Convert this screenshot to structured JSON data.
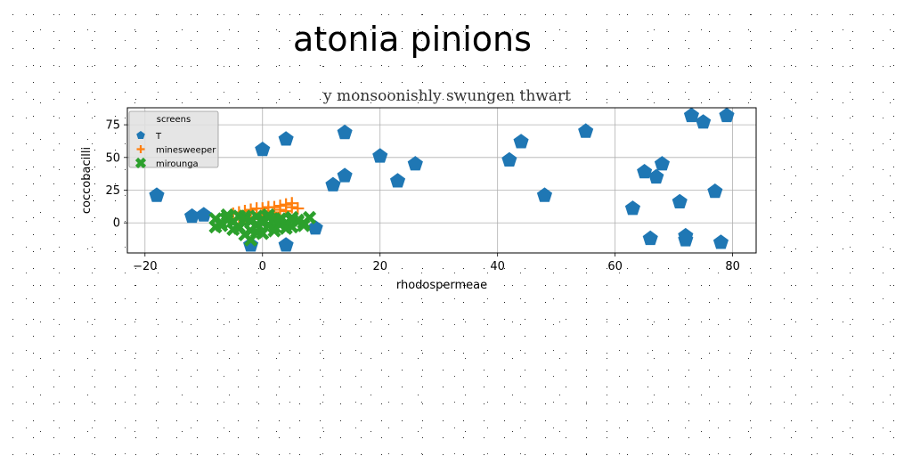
{
  "figure": {
    "suptitle": "atonia pinions"
  },
  "chart_data": {
    "type": "scatter",
    "title": "y monsoonishly swungen thwart",
    "xlabel": "rhodospermeae",
    "ylabel": "coccobacilli",
    "xlim": [
      -23,
      84
    ],
    "ylim": [
      -23,
      88
    ],
    "xticks": [
      -20,
      0,
      20,
      40,
      60,
      80
    ],
    "yticks": [
      0,
      25,
      50,
      75
    ],
    "grid": true,
    "legend": {
      "title": "screens",
      "position": "upper-left",
      "entries": [
        "T",
        "minesweeper",
        "mirounga"
      ]
    },
    "series": [
      {
        "name": "T",
        "marker": "pentagon",
        "color": "#1f77b4",
        "x": [
          -18,
          -12,
          -10,
          -2,
          0,
          4,
          4,
          9,
          12,
          14,
          14,
          20,
          23,
          26,
          42,
          44,
          48,
          55,
          63,
          65,
          66,
          67,
          68,
          71,
          72,
          72,
          73,
          75,
          77,
          78,
          79
        ],
        "y": [
          21,
          5,
          6,
          -17,
          56,
          64,
          -17,
          -4,
          29,
          36,
          69,
          51,
          32,
          45,
          48,
          62,
          21,
          70,
          11,
          39,
          -12,
          35,
          45,
          16,
          -10,
          -13,
          82,
          77,
          24,
          -15,
          82
        ]
      },
      {
        "name": "minesweeper",
        "marker": "plus",
        "color": "#ff7f0e",
        "x": [
          -5,
          -4,
          -3,
          -2,
          -1,
          0,
          1,
          2,
          3,
          4,
          5,
          -3,
          -1,
          1,
          3,
          5,
          -4,
          -2,
          0,
          2,
          4,
          6
        ],
        "y": [
          7,
          8,
          9,
          10,
          11,
          11,
          12,
          12,
          13,
          14,
          15,
          5,
          7,
          9,
          10,
          12,
          3,
          4,
          6,
          8,
          9,
          11
        ]
      },
      {
        "name": "mirounga",
        "marker": "x",
        "color": "#2ca02c",
        "x": [
          -8,
          -7,
          -6,
          -5,
          -4,
          -3,
          -2,
          -1,
          0,
          1,
          2,
          3,
          4,
          5,
          6,
          7,
          8,
          -8,
          -6,
          -4,
          -2,
          0,
          2,
          4,
          6,
          -7,
          -5,
          -3,
          -1,
          1,
          3,
          5,
          7,
          -6,
          -4,
          -2,
          0,
          2,
          4,
          -3,
          -1,
          1,
          3,
          -2,
          0,
          2,
          5,
          -5,
          -1
        ],
        "y": [
          3,
          -2,
          4,
          1,
          -4,
          5,
          2,
          -1,
          3,
          6,
          -3,
          2,
          0,
          4,
          1,
          -2,
          4,
          -3,
          2,
          5,
          -6,
          1,
          3,
          -4,
          2,
          0,
          -5,
          3,
          -2,
          4,
          -1,
          2,
          0,
          6,
          -3,
          1,
          -8,
          2,
          -4,
          -9,
          5,
          -2,
          3,
          -13,
          0,
          -6,
          -3,
          1,
          -7
        ]
      }
    ]
  }
}
